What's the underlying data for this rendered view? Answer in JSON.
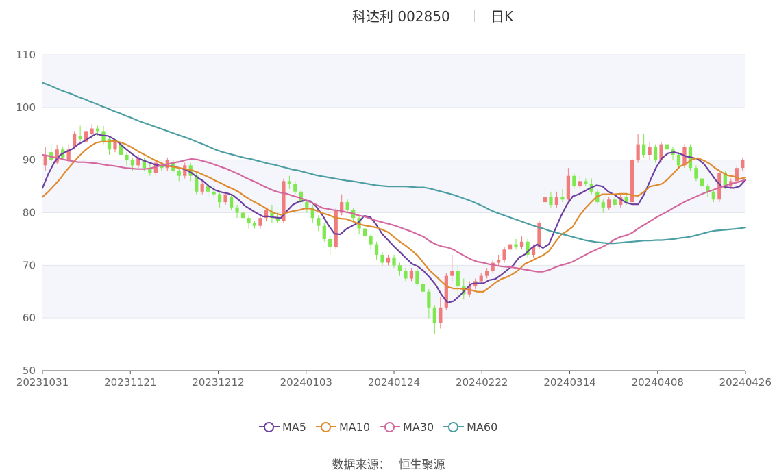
{
  "header": {
    "stock_title": "科达利 002850",
    "period": "日K"
  },
  "footer": {
    "source_label": "数据来源：",
    "source_name": "恒生聚源"
  },
  "chart_data": {
    "type": "candlestick",
    "ylim": [
      50,
      110
    ],
    "yticks": [
      50,
      60,
      70,
      80,
      90,
      100,
      110
    ],
    "grid": true,
    "legend_position": "bottom",
    "x_tick_labels": [
      "20231031",
      "20231121",
      "20231212",
      "20240103",
      "20240124",
      "20240222",
      "20240314",
      "20240408",
      "20240426"
    ],
    "colors": {
      "up": "#f07c7c",
      "down": "#7fe84f",
      "bands": [
        "#f5f6fb",
        "#ffffff"
      ],
      "axis": "#666666"
    },
    "candles": [
      [
        89.0,
        91.0,
        92.5,
        88.0
      ],
      [
        91.5,
        90.0,
        93.0,
        89.0
      ],
      [
        89.5,
        92.0,
        92.8,
        89.2
      ],
      [
        92.0,
        90.5,
        92.5,
        90.0
      ],
      [
        90.0,
        92.0,
        93.0,
        89.5
      ],
      [
        92.5,
        95.0,
        95.5,
        92.0
      ],
      [
        94.5,
        94.0,
        96.5,
        93.5
      ],
      [
        93.5,
        95.5,
        96.5,
        93.0
      ],
      [
        95.0,
        96.0,
        96.8,
        94.0
      ],
      [
        96.0,
        95.5,
        96.5,
        94.5
      ],
      [
        95.5,
        93.5,
        96.5,
        93.0
      ],
      [
        94.0,
        92.0,
        94.5,
        91.0
      ],
      [
        92.0,
        93.5,
        94.0,
        91.5
      ],
      [
        93.0,
        91.0,
        93.5,
        90.5
      ],
      [
        91.0,
        90.0,
        91.5,
        89.0
      ],
      [
        90.0,
        89.0,
        90.5,
        88.0
      ],
      [
        89.0,
        90.5,
        91.0,
        88.5
      ],
      [
        90.0,
        88.5,
        90.5,
        88.0
      ],
      [
        88.5,
        87.5,
        89.5,
        87.0
      ],
      [
        87.5,
        89.5,
        90.0,
        87.0
      ],
      [
        89.0,
        88.5,
        89.5,
        88.0
      ],
      [
        88.5,
        90.0,
        90.5,
        88.0
      ],
      [
        89.5,
        88.0,
        90.0,
        87.5
      ],
      [
        88.0,
        87.0,
        88.5,
        86.0
      ],
      [
        87.0,
        89.0,
        89.5,
        86.5
      ],
      [
        89.0,
        87.0,
        89.5,
        86.0
      ],
      [
        87.0,
        84.0,
        87.5,
        83.5
      ],
      [
        84.0,
        85.5,
        86.0,
        83.5
      ],
      [
        85.0,
        84.0,
        85.5,
        83.0
      ],
      [
        84.0,
        83.5,
        85.0,
        83.0
      ],
      [
        83.5,
        82.0,
        84.0,
        81.0
      ],
      [
        82.0,
        83.5,
        84.0,
        81.5
      ],
      [
        83.0,
        81.0,
        83.5,
        80.5
      ],
      [
        81.0,
        80.0,
        81.5,
        79.0
      ],
      [
        80.0,
        79.0,
        80.5,
        78.5
      ],
      [
        79.0,
        78.0,
        79.5,
        77.0
      ],
      [
        78.0,
        77.5,
        78.5,
        77.0
      ],
      [
        77.5,
        79.0,
        79.5,
        77.0
      ],
      [
        79.0,
        80.5,
        81.0,
        78.5
      ],
      [
        80.0,
        79.0,
        81.5,
        78.0
      ],
      [
        79.0,
        78.5,
        80.0,
        78.0
      ],
      [
        78.5,
        86.0,
        86.5,
        78.0
      ],
      [
        86.0,
        85.5,
        87.0,
        84.5
      ],
      [
        85.5,
        84.0,
        86.0,
        83.5
      ],
      [
        84.0,
        82.0,
        84.5,
        81.0
      ],
      [
        82.0,
        81.0,
        82.5,
        80.0
      ],
      [
        81.0,
        79.0,
        81.5,
        78.0
      ],
      [
        79.0,
        77.5,
        79.5,
        76.5
      ],
      [
        77.5,
        75.0,
        78.0,
        74.5
      ],
      [
        75.0,
        73.5,
        75.5,
        72.0
      ],
      [
        73.5,
        80.5,
        81.0,
        73.0
      ],
      [
        80.0,
        82.0,
        83.5,
        79.5
      ],
      [
        82.0,
        80.5,
        82.5,
        80.0
      ],
      [
        80.5,
        79.0,
        81.0,
        78.0
      ],
      [
        79.0,
        77.0,
        79.5,
        76.0
      ],
      [
        77.0,
        75.5,
        77.5,
        74.5
      ],
      [
        75.5,
        74.0,
        76.0,
        73.0
      ],
      [
        74.0,
        72.0,
        74.5,
        71.0
      ],
      [
        72.0,
        70.5,
        72.5,
        70.0
      ],
      [
        70.5,
        71.5,
        72.0,
        70.0
      ],
      [
        71.5,
        70.0,
        72.0,
        69.5
      ],
      [
        70.0,
        69.0,
        70.5,
        68.0
      ],
      [
        69.0,
        67.5,
        69.5,
        67.0
      ],
      [
        67.5,
        69.0,
        69.5,
        67.0
      ],
      [
        69.0,
        66.5,
        69.5,
        66.0
      ],
      [
        66.5,
        65.0,
        67.0,
        64.5
      ],
      [
        65.0,
        62.0,
        65.5,
        60.0
      ],
      [
        62.0,
        59.0,
        62.5,
        57.0
      ],
      [
        59.0,
        62.0,
        64.0,
        58.0
      ],
      [
        62.0,
        68.0,
        68.5,
        61.5
      ],
      [
        68.0,
        69.0,
        72.0,
        67.0
      ],
      [
        69.0,
        66.0,
        70.0,
        64.0
      ],
      [
        66.0,
        64.5,
        67.5,
        63.5
      ],
      [
        64.5,
        66.0,
        67.0,
        64.0
      ],
      [
        66.0,
        67.0,
        67.5,
        65.5
      ],
      [
        67.0,
        68.0,
        68.5,
        66.5
      ],
      [
        68.0,
        69.0,
        69.5,
        67.5
      ],
      [
        69.0,
        70.5,
        71.0,
        68.5
      ],
      [
        70.5,
        71.0,
        72.0,
        70.0
      ],
      [
        71.0,
        73.0,
        73.5,
        70.5
      ],
      [
        73.0,
        74.0,
        74.5,
        72.5
      ],
      [
        74.0,
        73.5,
        75.0,
        73.0
      ],
      [
        73.5,
        74.5,
        75.5,
        73.0
      ],
      [
        74.5,
        72.0,
        75.0,
        71.5
      ],
      [
        72.0,
        73.5,
        74.0,
        71.5
      ],
      [
        73.5,
        78.0,
        78.5,
        73.0
      ],
      [
        82.0,
        83.0,
        85.0,
        82.5
      ],
      [
        83.0,
        81.5,
        84.0,
        81.0
      ],
      [
        81.5,
        83.0,
        84.0,
        81.0
      ],
      [
        83.0,
        82.5,
        84.5,
        82.0
      ],
      [
        82.5,
        87.0,
        88.5,
        82.0
      ],
      [
        87.0,
        85.0,
        87.5,
        84.5
      ],
      [
        85.0,
        86.0,
        87.0,
        84.5
      ],
      [
        86.0,
        85.5,
        86.5,
        85.0
      ],
      [
        85.5,
        84.0,
        86.5,
        83.5
      ],
      [
        84.0,
        82.0,
        84.5,
        81.5
      ],
      [
        82.0,
        81.0,
        82.5,
        80.0
      ],
      [
        81.0,
        82.5,
        83.0,
        80.5
      ],
      [
        82.5,
        81.5,
        83.0,
        81.0
      ],
      [
        81.5,
        83.0,
        83.5,
        81.0
      ],
      [
        83.0,
        82.0,
        83.5,
        81.5
      ],
      [
        82.0,
        90.0,
        90.5,
        81.5
      ],
      [
        90.0,
        93.0,
        95.0,
        89.5
      ],
      [
        93.0,
        91.0,
        95.0,
        90.5
      ],
      [
        91.0,
        92.5,
        93.5,
        90.0
      ],
      [
        92.5,
        90.0,
        93.0,
        89.5
      ],
      [
        90.0,
        93.0,
        93.5,
        89.5
      ],
      [
        93.0,
        92.0,
        93.5,
        91.0
      ],
      [
        92.0,
        91.0,
        92.5,
        90.0
      ],
      [
        91.0,
        89.0,
        91.5,
        88.5
      ],
      [
        89.0,
        92.5,
        93.0,
        88.5
      ],
      [
        92.5,
        88.5,
        93.0,
        88.0
      ],
      [
        88.5,
        86.5,
        89.0,
        86.0
      ],
      [
        86.5,
        85.0,
        87.0,
        84.5
      ],
      [
        85.0,
        84.0,
        85.5,
        83.0
      ],
      [
        84.0,
        82.5,
        84.5,
        82.0
      ],
      [
        82.5,
        87.5,
        88.0,
        82.0
      ],
      [
        87.5,
        85.0,
        88.0,
        84.5
      ],
      [
        85.0,
        86.0,
        86.5,
        84.5
      ],
      [
        86.0,
        88.5,
        89.0,
        85.5
      ],
      [
        88.5,
        90.0,
        90.5,
        88.0
      ]
    ],
    "series": [
      {
        "name": "MA5",
        "color": "#6a3fa0",
        "values": [
          84.7,
          87.4,
          89.6,
          91.0,
          91.6,
          92.1,
          93.0,
          93.6,
          94.3,
          95.0,
          94.7,
          94.6,
          94.0,
          93.1,
          92.1,
          91.2,
          90.4,
          89.9,
          89.5,
          89.1,
          88.9,
          88.9,
          88.8,
          88.5,
          88.2,
          87.6,
          86.7,
          86.0,
          85.0,
          84.3,
          83.9,
          83.7,
          83.3,
          82.4,
          81.3,
          80.6,
          79.9,
          79.3,
          79.3,
          79.1,
          79.0,
          80.3,
          81.5,
          82.1,
          82.3,
          82.2,
          81.1,
          79.5,
          77.6,
          76.0,
          75.9,
          76.9,
          77.5,
          78.1,
          79.4,
          79.2,
          77.8,
          76.0,
          74.8,
          73.6,
          72.5,
          71.4,
          70.3,
          69.8,
          68.9,
          67.7,
          66.3,
          64.4,
          62.9,
          63.2,
          64.2,
          65.4,
          66.5,
          66.6,
          66.6,
          67.2,
          67.4,
          68.2,
          69.1,
          70.0,
          71.5,
          72.1,
          73.2,
          74.0,
          73.3,
          74.0,
          76.7,
          79.3,
          81.5,
          83.1,
          83.5,
          84.1,
          84.7,
          85.2,
          85.0,
          84.0,
          83.4,
          82.6,
          81.9,
          81.6,
          81.6,
          83.5,
          86.1,
          88.6,
          90.4,
          91.3,
          91.5,
          91.2,
          90.7,
          90.5,
          90.2,
          89.3,
          87.8,
          86.2,
          85.0,
          84.8,
          84.7,
          85.0,
          86.2
        ]
      },
      {
        "name": "MA10",
        "color": "#e08a2e",
        "values": [
          83.0,
          84.0,
          85.2,
          86.5,
          88.0,
          89.3,
          90.6,
          91.7,
          92.6,
          93.3,
          93.5,
          93.5,
          93.6,
          93.4,
          93.0,
          92.4,
          91.7,
          91.1,
          90.5,
          89.9,
          89.4,
          88.9,
          88.7,
          88.5,
          88.3,
          88.1,
          87.7,
          87.2,
          86.7,
          86.1,
          85.6,
          85.0,
          84.5,
          83.9,
          83.1,
          82.4,
          81.8,
          81.2,
          80.5,
          79.9,
          79.6,
          80.0,
          80.3,
          80.5,
          80.8,
          80.8,
          80.4,
          79.9,
          79.6,
          79.1,
          78.9,
          78.8,
          78.4,
          77.9,
          77.6,
          77.4,
          77.2,
          76.8,
          76.3,
          75.4,
          74.5,
          73.7,
          72.8,
          71.8,
          70.4,
          69.0,
          68.0,
          66.9,
          65.9,
          65.6,
          65.6,
          65.4,
          65.3,
          65.0,
          65.0,
          65.8,
          66.7,
          67.4,
          67.8,
          68.4,
          69.2,
          70.3,
          70.8,
          71.4,
          71.9,
          72.7,
          74.3,
          75.8,
          76.5,
          77.3,
          79.2,
          80.7,
          81.9,
          83.0,
          83.5,
          83.5,
          83.5,
          83.6,
          83.6,
          83.3,
          83.2,
          84.0,
          85.0,
          85.2,
          85.5,
          86.4,
          87.6,
          88.8,
          89.3,
          90.1,
          90.4,
          89.9,
          89.3,
          88.4,
          87.7,
          87.1,
          86.9,
          86.4,
          86.7
        ]
      },
      {
        "name": "MA30",
        "color": "#d4689e",
        "values": [
          91.0,
          90.8,
          90.5,
          90.3,
          90.0,
          89.8,
          89.6,
          89.6,
          89.5,
          89.4,
          89.2,
          89.0,
          88.9,
          88.7,
          88.5,
          88.4,
          88.3,
          88.3,
          88.4,
          88.7,
          89.0,
          89.2,
          89.5,
          89.7,
          90.0,
          90.2,
          90.1,
          89.8,
          89.5,
          89.1,
          88.7,
          88.3,
          87.8,
          87.3,
          86.7,
          86.2,
          85.7,
          85.1,
          84.6,
          84.1,
          83.8,
          83.6,
          83.2,
          82.9,
          82.5,
          82.0,
          81.5,
          80.9,
          80.7,
          80.5,
          80.4,
          80.1,
          79.9,
          79.5,
          79.3,
          78.9,
          78.5,
          78.2,
          77.9,
          77.6,
          77.2,
          76.8,
          76.4,
          75.9,
          75.4,
          74.6,
          74.0,
          73.6,
          73.4,
          73.0,
          72.3,
          71.7,
          71.1,
          70.7,
          70.5,
          70.2,
          70.0,
          69.8,
          69.7,
          69.6,
          69.4,
          69.2,
          69.0,
          68.8,
          68.8,
          69.1,
          69.6,
          70.0,
          70.3,
          70.7,
          71.3,
          71.9,
          72.5,
          73.0,
          73.5,
          74.1,
          74.9,
          75.4,
          75.7,
          76.2,
          77.0,
          77.7,
          78.4,
          79.1,
          79.7,
          80.3,
          81.0,
          81.6,
          82.2,
          82.7,
          83.2,
          83.7,
          84.1,
          84.5,
          84.9,
          85.3,
          85.6,
          85.9,
          86.3
        ]
      },
      {
        "name": "MA60",
        "color": "#4c9ea3",
        "values": [
          104.7,
          104.3,
          103.8,
          103.3,
          102.9,
          102.5,
          102.0,
          101.6,
          101.1,
          100.7,
          100.2,
          99.8,
          99.3,
          98.9,
          98.4,
          98.0,
          97.5,
          97.1,
          96.7,
          96.3,
          95.9,
          95.5,
          95.1,
          94.7,
          94.3,
          93.9,
          93.4,
          93.0,
          92.5,
          92.0,
          91.6,
          91.3,
          91.0,
          90.7,
          90.4,
          90.2,
          89.9,
          89.6,
          89.3,
          89.1,
          88.8,
          88.5,
          88.2,
          88.0,
          87.7,
          87.4,
          87.1,
          86.9,
          86.7,
          86.5,
          86.3,
          86.1,
          86.0,
          85.8,
          85.6,
          85.4,
          85.2,
          85.1,
          85.0,
          85.0,
          85.0,
          85.0,
          84.9,
          84.8,
          84.8,
          84.6,
          84.3,
          84.0,
          83.7,
          83.4,
          83.0,
          82.6,
          82.2,
          81.7,
          81.2,
          80.6,
          80.1,
          79.7,
          79.3,
          78.9,
          78.5,
          78.1,
          77.7,
          77.3,
          77.0,
          76.6,
          76.3,
          76.0,
          75.7,
          75.4,
          75.1,
          74.8,
          74.6,
          74.4,
          74.3,
          74.2,
          74.2,
          74.3,
          74.4,
          74.5,
          74.6,
          74.7,
          74.7,
          74.8,
          74.8,
          74.9,
          75.0,
          75.2,
          75.3,
          75.5,
          75.8,
          76.1,
          76.4,
          76.6,
          76.7,
          76.8,
          76.9,
          77.0,
          77.2
        ]
      }
    ]
  }
}
